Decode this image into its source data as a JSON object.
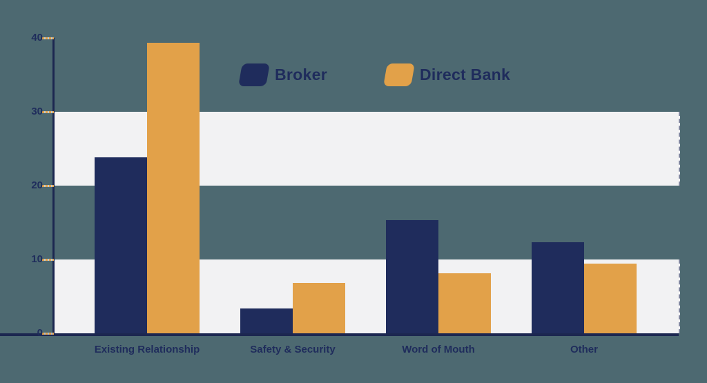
{
  "chart_data": {
    "type": "bar",
    "title": "",
    "categories": [
      "Existing Relationship",
      "Safety & Security",
      "Word of Mouth",
      "Other"
    ],
    "series": [
      {
        "name": "Broker",
        "color": "#1F2C5C",
        "values": [
          23.8,
          3.4,
          15.3,
          12.3
        ]
      },
      {
        "name": "Direct Bank",
        "color": "#E2A149",
        "values": [
          39.3,
          6.8,
          8.1,
          9.4
        ]
      }
    ],
    "xlabel": "",
    "ylabel": "",
    "ylim": [
      0,
      40
    ],
    "yticks": [
      0,
      10,
      20,
      30,
      40
    ],
    "bands": [
      [
        0,
        10
      ],
      [
        20,
        30
      ]
    ],
    "grid": "banded-rows",
    "legend_position": "top-center",
    "colors": {
      "background": "#4D6971",
      "band": "#F2F2F3",
      "axis": "#1C2750",
      "tick_dash": "#E2A149",
      "label_text": "#1F2C5C"
    }
  }
}
